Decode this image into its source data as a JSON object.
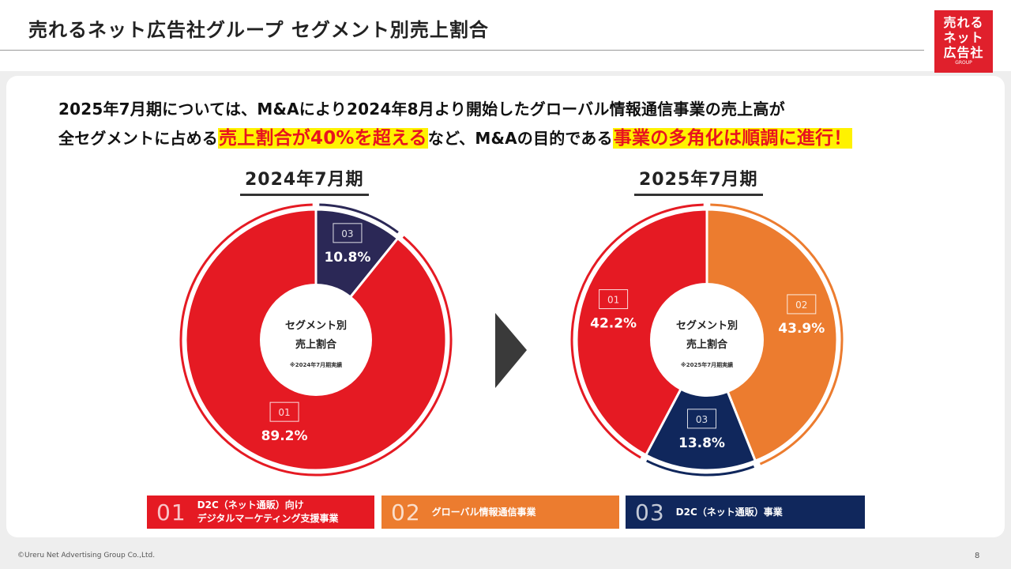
{
  "header": {
    "title": "売れるネット広告社グループ セグメント別売上割合",
    "logo_lines": [
      "売れる",
      "ネット",
      "広告社",
      "GROUP"
    ]
  },
  "headline": {
    "line1": "2025年7月期については、M&Aにより2024年8月より開始したグローバル情報通信事業の売上高が",
    "line2_a": "全セグメントに占める",
    "line2_b": "売上割合が40%を超える",
    "line2_c": "など、M&Aの目的である",
    "line2_d": "事業の多角化は順調に進行！"
  },
  "periods": [
    "2024年7月期",
    "2025年7月期"
  ],
  "center_labels": [
    {
      "line1": "セグメント別",
      "line2": "売上割合",
      "note": "※2024年7月期実績"
    },
    {
      "line1": "セグメント別",
      "line2": "売上割合",
      "note": "※2025年7月期実績"
    }
  ],
  "legend": [
    {
      "num": "01",
      "line1": "D2C（ネット通販）向け",
      "line2": "デジタルマーケティング支援事業",
      "color": "#e51a23"
    },
    {
      "num": "02",
      "line1": "グローバル情報通信事業",
      "line2": "",
      "color": "#ec7c2f"
    },
    {
      "num": "03",
      "line1": "D2C（ネット通販）事業",
      "line2": "",
      "color": "#10275c"
    }
  ],
  "chart_data": [
    {
      "type": "pie",
      "title": "2024年7月期",
      "slices": [
        {
          "id": "03",
          "value": 10.8,
          "label": "10.8%",
          "color": "#2b2856"
        },
        {
          "id": "01",
          "value": 89.2,
          "label": "89.2%",
          "color": "#e51a23"
        }
      ]
    },
    {
      "type": "pie",
      "title": "2025年7月期",
      "slices": [
        {
          "id": "02",
          "value": 43.9,
          "label": "43.9%",
          "color": "#ec7c2f"
        },
        {
          "id": "03",
          "value": 13.8,
          "label": "13.8%",
          "color": "#10275c"
        },
        {
          "id": "01",
          "value": 42.2,
          "label": "42.2%",
          "color": "#e51a23"
        }
      ]
    }
  ],
  "footer": {
    "copyright": "©Ureru Net Advertising Group Co.,Ltd.",
    "page": "8"
  }
}
